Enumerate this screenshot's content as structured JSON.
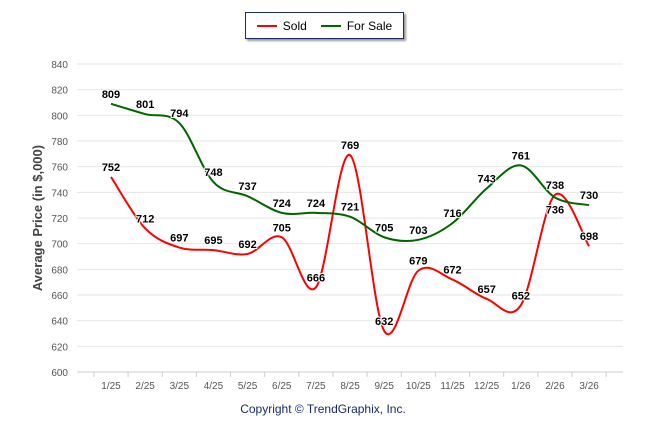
{
  "chart_data": {
    "type": "line",
    "title": "",
    "xlabel": "",
    "ylabel": "Average Price (in $,000)",
    "ylim": [
      600,
      840
    ],
    "yticks": [
      600,
      620,
      640,
      660,
      680,
      700,
      720,
      740,
      760,
      780,
      800,
      820,
      840
    ],
    "categories": [
      "1/25",
      "2/25",
      "3/25",
      "4/25",
      "5/25",
      "6/25",
      "7/25",
      "8/25",
      "9/25",
      "10/25",
      "11/25",
      "12/25",
      "1/26",
      "2/26",
      "3/26"
    ],
    "legend_placement": "top-center",
    "grid": true,
    "series": [
      {
        "name": "Sold",
        "color": "#ff0000",
        "values": [
          752,
          712,
          697,
          695,
          692,
          705,
          666,
          769,
          632,
          679,
          672,
          657,
          652,
          738,
          698
        ]
      },
      {
        "name": "For Sale",
        "color": "#006400",
        "values": [
          809,
          801,
          794,
          748,
          737,
          724,
          724,
          721,
          705,
          703,
          716,
          743,
          761,
          736,
          730
        ]
      }
    ]
  },
  "copyright": "Copyright © TrendGraphix, Inc."
}
